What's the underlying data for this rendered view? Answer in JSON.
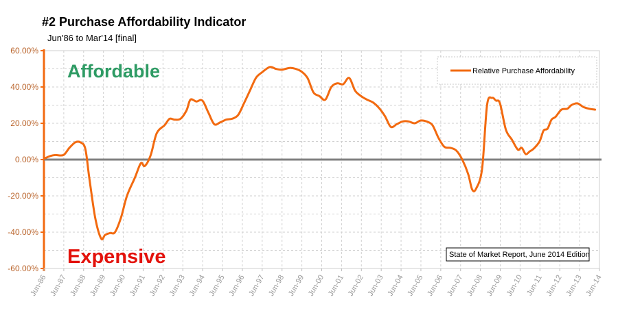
{
  "chart_data": {
    "type": "line",
    "title": "#2 Purchase Affordability Indicator",
    "subtitle": "Jun'86 to Mar'14 [final]",
    "ylim": [
      -60,
      60
    ],
    "y_ticks": [
      "60.00%",
      "40.00%",
      "20.00%",
      "0.00%",
      "-20.00%",
      "-40.00%",
      "-60.00%"
    ],
    "y_tick_values": [
      60,
      40,
      20,
      0,
      -20,
      -40,
      -60
    ],
    "x_ticks": [
      "Jun-86",
      "Jun-87",
      "Jun-88",
      "Jun-89",
      "Jun-90",
      "Jun-91",
      "Jun-92",
      "Jun-93",
      "Jun-94",
      "Jun-95",
      "Jun-96",
      "Jun-97",
      "Jun-98",
      "Jun-99",
      "Jun-00",
      "Jun-01",
      "Jun-02",
      "Jun-03",
      "Jun-04",
      "Jun-05",
      "Jun-06",
      "Jun-07",
      "Jun-08",
      "Jun-09",
      "Jun-10",
      "Jun-11",
      "Jun-12",
      "Jun-13",
      "Jun-14"
    ],
    "grid": true,
    "legend_position": "top-right",
    "series": [
      {
        "name": "Relative Purchase Affordability",
        "color": "#f26a10",
        "x": [
          1986.42,
          1986.75,
          1987.0,
          1987.4,
          1987.7,
          1988.0,
          1988.25,
          1988.5,
          1988.7,
          1989.0,
          1989.3,
          1989.5,
          1989.75,
          1990.0,
          1990.3,
          1990.6,
          1991.0,
          1991.3,
          1991.5,
          1991.8,
          1992.1,
          1992.5,
          1992.75,
          1993.0,
          1993.3,
          1993.6,
          1993.8,
          1994.1,
          1994.4,
          1994.7,
          1995.0,
          1995.3,
          1995.6,
          1995.9,
          1996.2,
          1996.5,
          1996.8,
          1997.1,
          1997.4,
          1997.8,
          1998.1,
          1998.4,
          1998.8,
          1999.1,
          1999.4,
          1999.7,
          2000.0,
          2000.3,
          2000.6,
          2000.9,
          2001.2,
          2001.5,
          2001.8,
          2002.1,
          2002.4,
          2002.7,
          2003.0,
          2003.3,
          2003.6,
          2003.9,
          2004.2,
          2004.5,
          2004.8,
          2005.1,
          2005.4,
          2005.7,
          2006.0,
          2006.3,
          2006.6,
          2006.9,
          2007.2,
          2007.5,
          2007.8,
          2008.0,
          2008.2,
          2008.5,
          2008.75,
          2009.0,
          2009.2,
          2009.4,
          2009.7,
          2010.0,
          2010.3,
          2010.5,
          2010.7,
          2010.9,
          2011.1,
          2011.4,
          2011.6,
          2011.8,
          2012.0,
          2012.2,
          2012.5,
          2012.8,
          2013.0,
          2013.3,
          2013.6,
          2013.9,
          2014.2
        ],
        "values": [
          0.5,
          2.0,
          2.5,
          2.5,
          6.5,
          9.5,
          9.5,
          6.0,
          -10.0,
          -32.0,
          -43.5,
          -41.5,
          -40.5,
          -40.0,
          -32.0,
          -20.0,
          -10.0,
          -2.0,
          -3.5,
          2.5,
          14.5,
          19.0,
          22.5,
          22.0,
          22.5,
          27.0,
          33.0,
          32.0,
          32.5,
          26.0,
          19.5,
          20.5,
          22.0,
          22.5,
          24.5,
          31.0,
          38.0,
          45.0,
          48.0,
          51.0,
          50.0,
          49.5,
          50.5,
          50.0,
          48.5,
          45.0,
          37.0,
          35.0,
          33.0,
          40.0,
          42.0,
          41.5,
          45.0,
          38.0,
          35.0,
          33.0,
          31.5,
          28.5,
          24.0,
          18.0,
          19.5,
          21.0,
          21.0,
          20.0,
          21.5,
          21.0,
          19.0,
          12.0,
          7.0,
          6.5,
          5.0,
          0.0,
          -8.0,
          -16.5,
          -16.0,
          -5.0,
          30.0,
          34.0,
          32.5,
          31.0,
          16.5,
          11.0,
          5.5,
          6.5,
          3.0,
          4.5,
          6.0,
          10.0,
          16.0,
          17.0,
          22.0,
          23.5,
          27.5,
          28.0,
          30.0,
          31.0,
          29.0,
          28.0,
          27.5
        ]
      }
    ],
    "baseline": {
      "value": 0,
      "color": "#808080"
    },
    "annotations": {
      "top_label": "Affordable",
      "bottom_label": "Expensive",
      "top_color": "#2e9b64",
      "bottom_color": "#e3120b",
      "source_note": "State of Market Report, June 2014 Edition"
    },
    "axis_color": "#f26a10"
  }
}
